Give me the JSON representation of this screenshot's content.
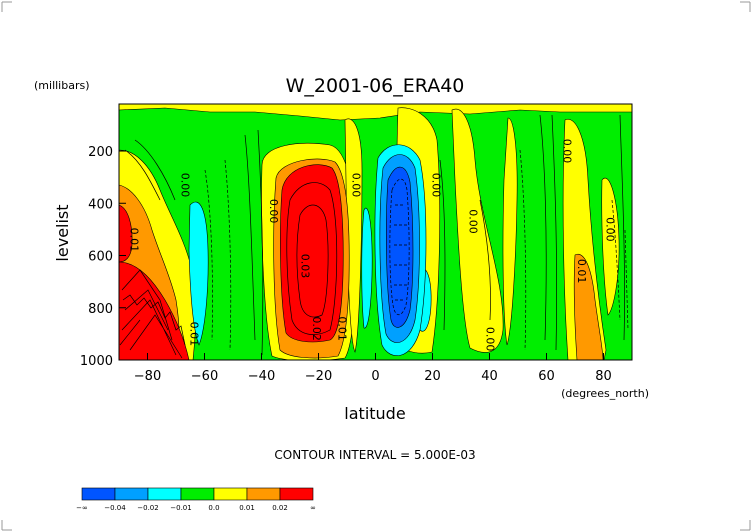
{
  "chart_data": {
    "type": "heatmap",
    "title": "W_2001-06_ERA40",
    "ylabel": "levelist",
    "yunits": "(millibars)",
    "xlabel": "latitude",
    "xunits": "(degrees_north)",
    "xlim": [
      -90,
      90
    ],
    "ylim": [
      1000,
      20
    ],
    "y_inverted": true,
    "x_ticks": [
      -80,
      -60,
      -40,
      -20,
      0,
      20,
      40,
      60,
      80
    ],
    "y_ticks": [
      200,
      400,
      600,
      800,
      1000
    ],
    "contour_interval_text": "CONTOUR INTERVAL = 5.000E-03",
    "contour_labels": [
      {
        "text": "0.00",
        "x": -68,
        "y": 330
      },
      {
        "text": "0.00",
        "x": -37,
        "y": 430
      },
      {
        "text": "0.00",
        "x": -8,
        "y": 330
      },
      {
        "text": "0.00",
        "x": 20,
        "y": 330
      },
      {
        "text": "0.00",
        "x": 33,
        "y": 470
      },
      {
        "text": "0.00",
        "x": 66,
        "y": 200
      },
      {
        "text": "0.00",
        "x": 81,
        "y": 500
      },
      {
        "text": "0.01",
        "x": -86,
        "y": 540
      },
      {
        "text": "0.01",
        "x": -65,
        "y": 900
      },
      {
        "text": "0.01",
        "x": -13,
        "y": 880
      },
      {
        "text": "0.02",
        "x": -22,
        "y": 880
      },
      {
        "text": "0.03",
        "x": -26,
        "y": 640
      },
      {
        "text": "0.01",
        "x": 71,
        "y": 660
      },
      {
        "text": "0.00",
        "x": 39,
        "y": 920
      }
    ],
    "colorbar": {
      "colors": [
        "#0055ff",
        "#00a0ff",
        "#00ffff",
        "#00ee00",
        "#ffff00",
        "#ff9900",
        "#ff0000"
      ],
      "labels": [
        "-∞",
        "-0.04",
        "-0.02",
        "-0.01",
        "0.0",
        "0.01",
        "0.02",
        "∞"
      ]
    },
    "field_features": [
      {
        "name": "background",
        "sign": "near zero",
        "color": "#00ee00"
      },
      {
        "name": "southern subtropical ascent",
        "lat_range": [
          -35,
          -12
        ],
        "p_range": [
          230,
          920
        ],
        "peak": 0.03
      },
      {
        "name": "antarctic slope ascent",
        "lat_range": [
          -90,
          -62
        ],
        "p_range": [
          600,
          1000
        ],
        "peak": 0.05
      },
      {
        "name": "tropical descent",
        "lat_range": [
          2,
          14
        ],
        "p_range": [
          140,
          960
        ],
        "peak": -0.05
      },
      {
        "name": "southern descent band",
        "lat_range": [
          -65,
          -59
        ],
        "p_range": [
          350,
          950
        ],
        "peak": -0.01
      },
      {
        "name": "northern subsidence band",
        "lat_range": [
          15,
          25
        ],
        "p_range": [
          500,
          850
        ],
        "peak": -0.01
      },
      {
        "name": "arctic ascent",
        "lat_range": [
          67,
          78
        ],
        "p_range": [
          550,
          1000
        ],
        "peak": 0.01
      }
    ]
  }
}
